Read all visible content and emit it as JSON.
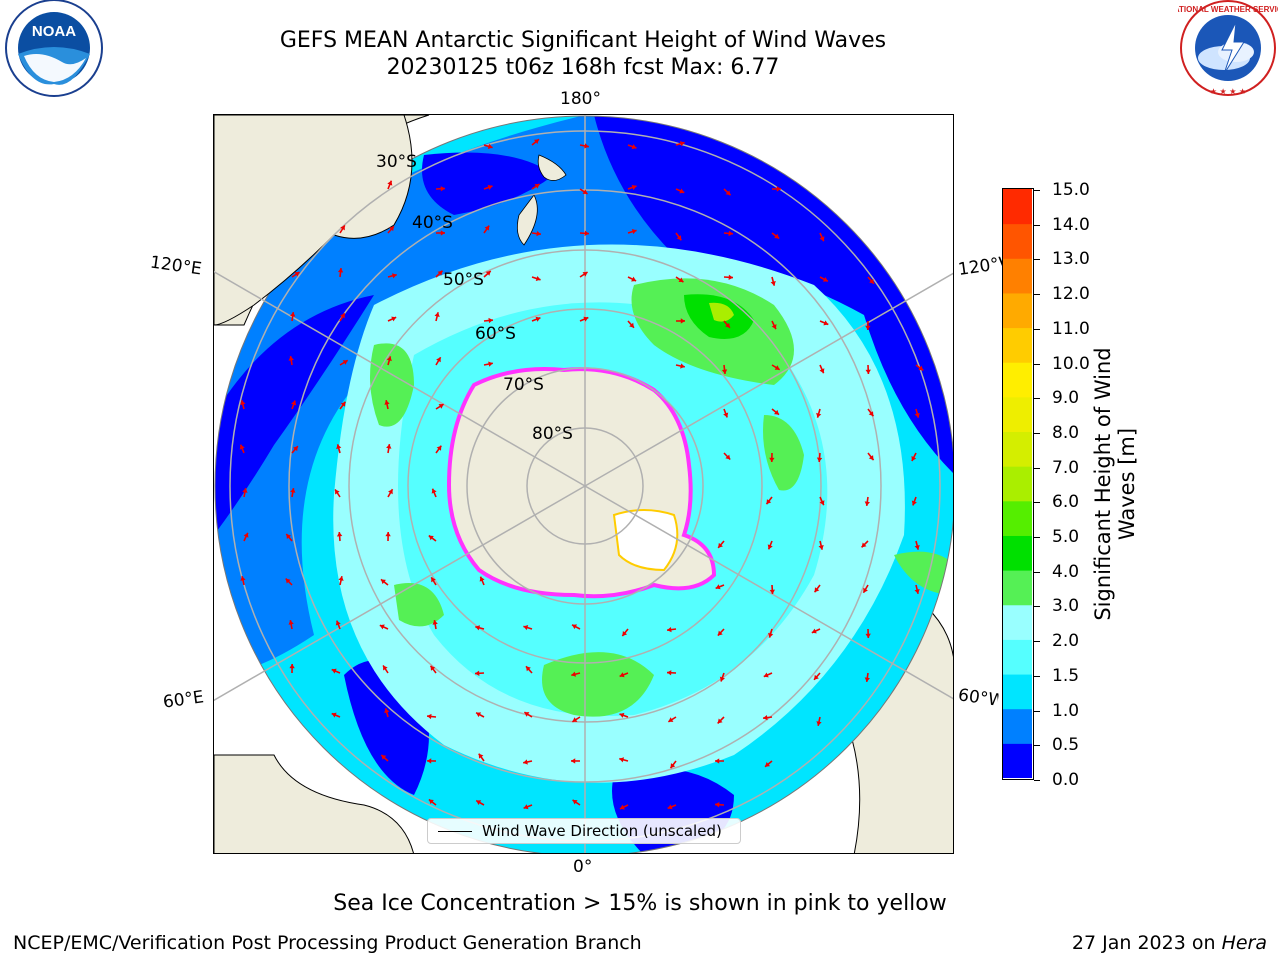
{
  "header": {
    "title_line1": "GEFS MEAN Antarctic Significant Height of Wind Waves",
    "title_line2": "20230125 t06z 168h fcst   Max: 6.77"
  },
  "logos": {
    "noaa_text": "NOAA",
    "noaa_ring_text": "NATIONAL OCEANIC AND ATMOSPHERIC ADMINISTRATION · U.S. DEPARTMENT OF COMMERCE",
    "nws_ring_text": "NATIONAL WEATHER SERVICE"
  },
  "map": {
    "longitude_labels": {
      "top": "180°",
      "bottom": "0°",
      "left_upper": "120°E",
      "left_lower": "60°E",
      "right_upper": "120°W",
      "right_lower": "60°W"
    },
    "latitude_labels": [
      "30°S",
      "40°S",
      "50°S",
      "60°S",
      "70°S",
      "80°S"
    ],
    "legend_label": "Wind Wave Direction (unscaled)",
    "colors": {
      "land": "#eeecdc",
      "ice": "#ff33ff",
      "arrow": "#ee0000",
      "grid": "#b0b0b0"
    }
  },
  "colorbar": {
    "label": "Significant Height of Wind Waves [m]",
    "label_line1": "Significant Height of Wind",
    "label_line2": "Waves [m]",
    "ticks": [
      "0.0",
      "0.5",
      "1.0",
      "1.5",
      "2.0",
      "3.0",
      "4.0",
      "5.0",
      "6.0",
      "7.0",
      "8.0",
      "9.0",
      "10.0",
      "11.0",
      "12.0",
      "13.0",
      "14.0",
      "15.0"
    ],
    "colors": [
      "#0000ff",
      "#0080ff",
      "#00e5ff",
      "#55ffff",
      "#99ffff",
      "#55f055",
      "#00e000",
      "#55ee00",
      "#aaee00",
      "#d4ee00",
      "#eeee00",
      "#ffee00",
      "#ffcc00",
      "#ffaa00",
      "#ff8000",
      "#ff5500",
      "#ff2a00"
    ]
  },
  "notes": {
    "sea_ice": "Sea Ice Concentration > 15% is shown in pink to yellow"
  },
  "footer": {
    "left": "NCEP/EMC/Verification Post Processing Product Generation Branch",
    "right_prefix": "27 Jan 2023 on ",
    "right_italic": "Hera"
  }
}
